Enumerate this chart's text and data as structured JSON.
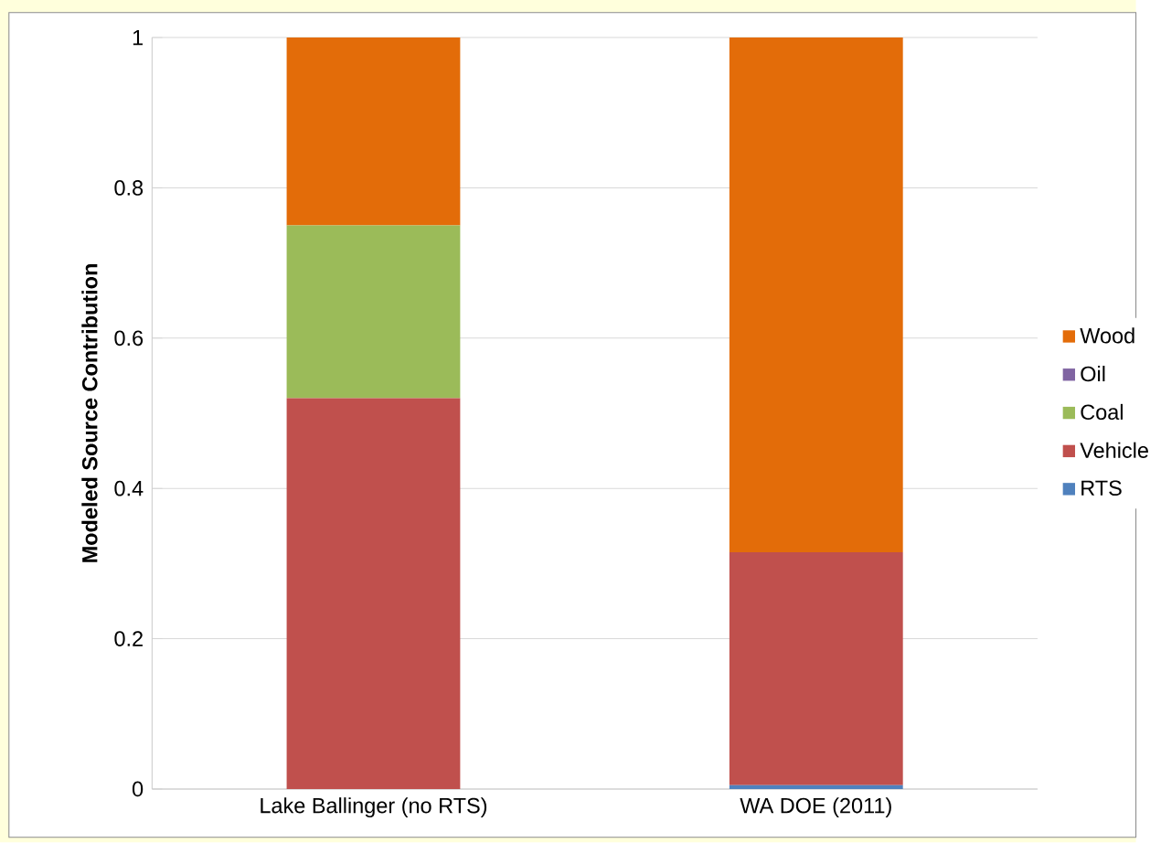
{
  "chart_data": {
    "type": "bar",
    "stacked": true,
    "ylabel": "Modeled Source Contribution",
    "categories": [
      "Lake Ballinger (no RTS)",
      "WA DOE (2011)"
    ],
    "series": [
      {
        "name": "RTS",
        "color": "#4f81bd",
        "values": [
          0,
          0.005
        ]
      },
      {
        "name": "Vehicle",
        "color": "#c0504d",
        "values": [
          0.52,
          0.31
        ]
      },
      {
        "name": "Coal",
        "color": "#9bbb59",
        "values": [
          0.23,
          0
        ]
      },
      {
        "name": "Oil",
        "color": "#8064a2",
        "values": [
          0,
          0
        ]
      },
      {
        "name": "Wood",
        "color": "#e36c09",
        "values": [
          0.25,
          0.685
        ]
      }
    ],
    "ylim": [
      0,
      1
    ],
    "yticks": [
      0,
      0.2,
      0.4,
      0.6,
      0.8,
      1
    ],
    "grid": "y",
    "legend": "right"
  }
}
